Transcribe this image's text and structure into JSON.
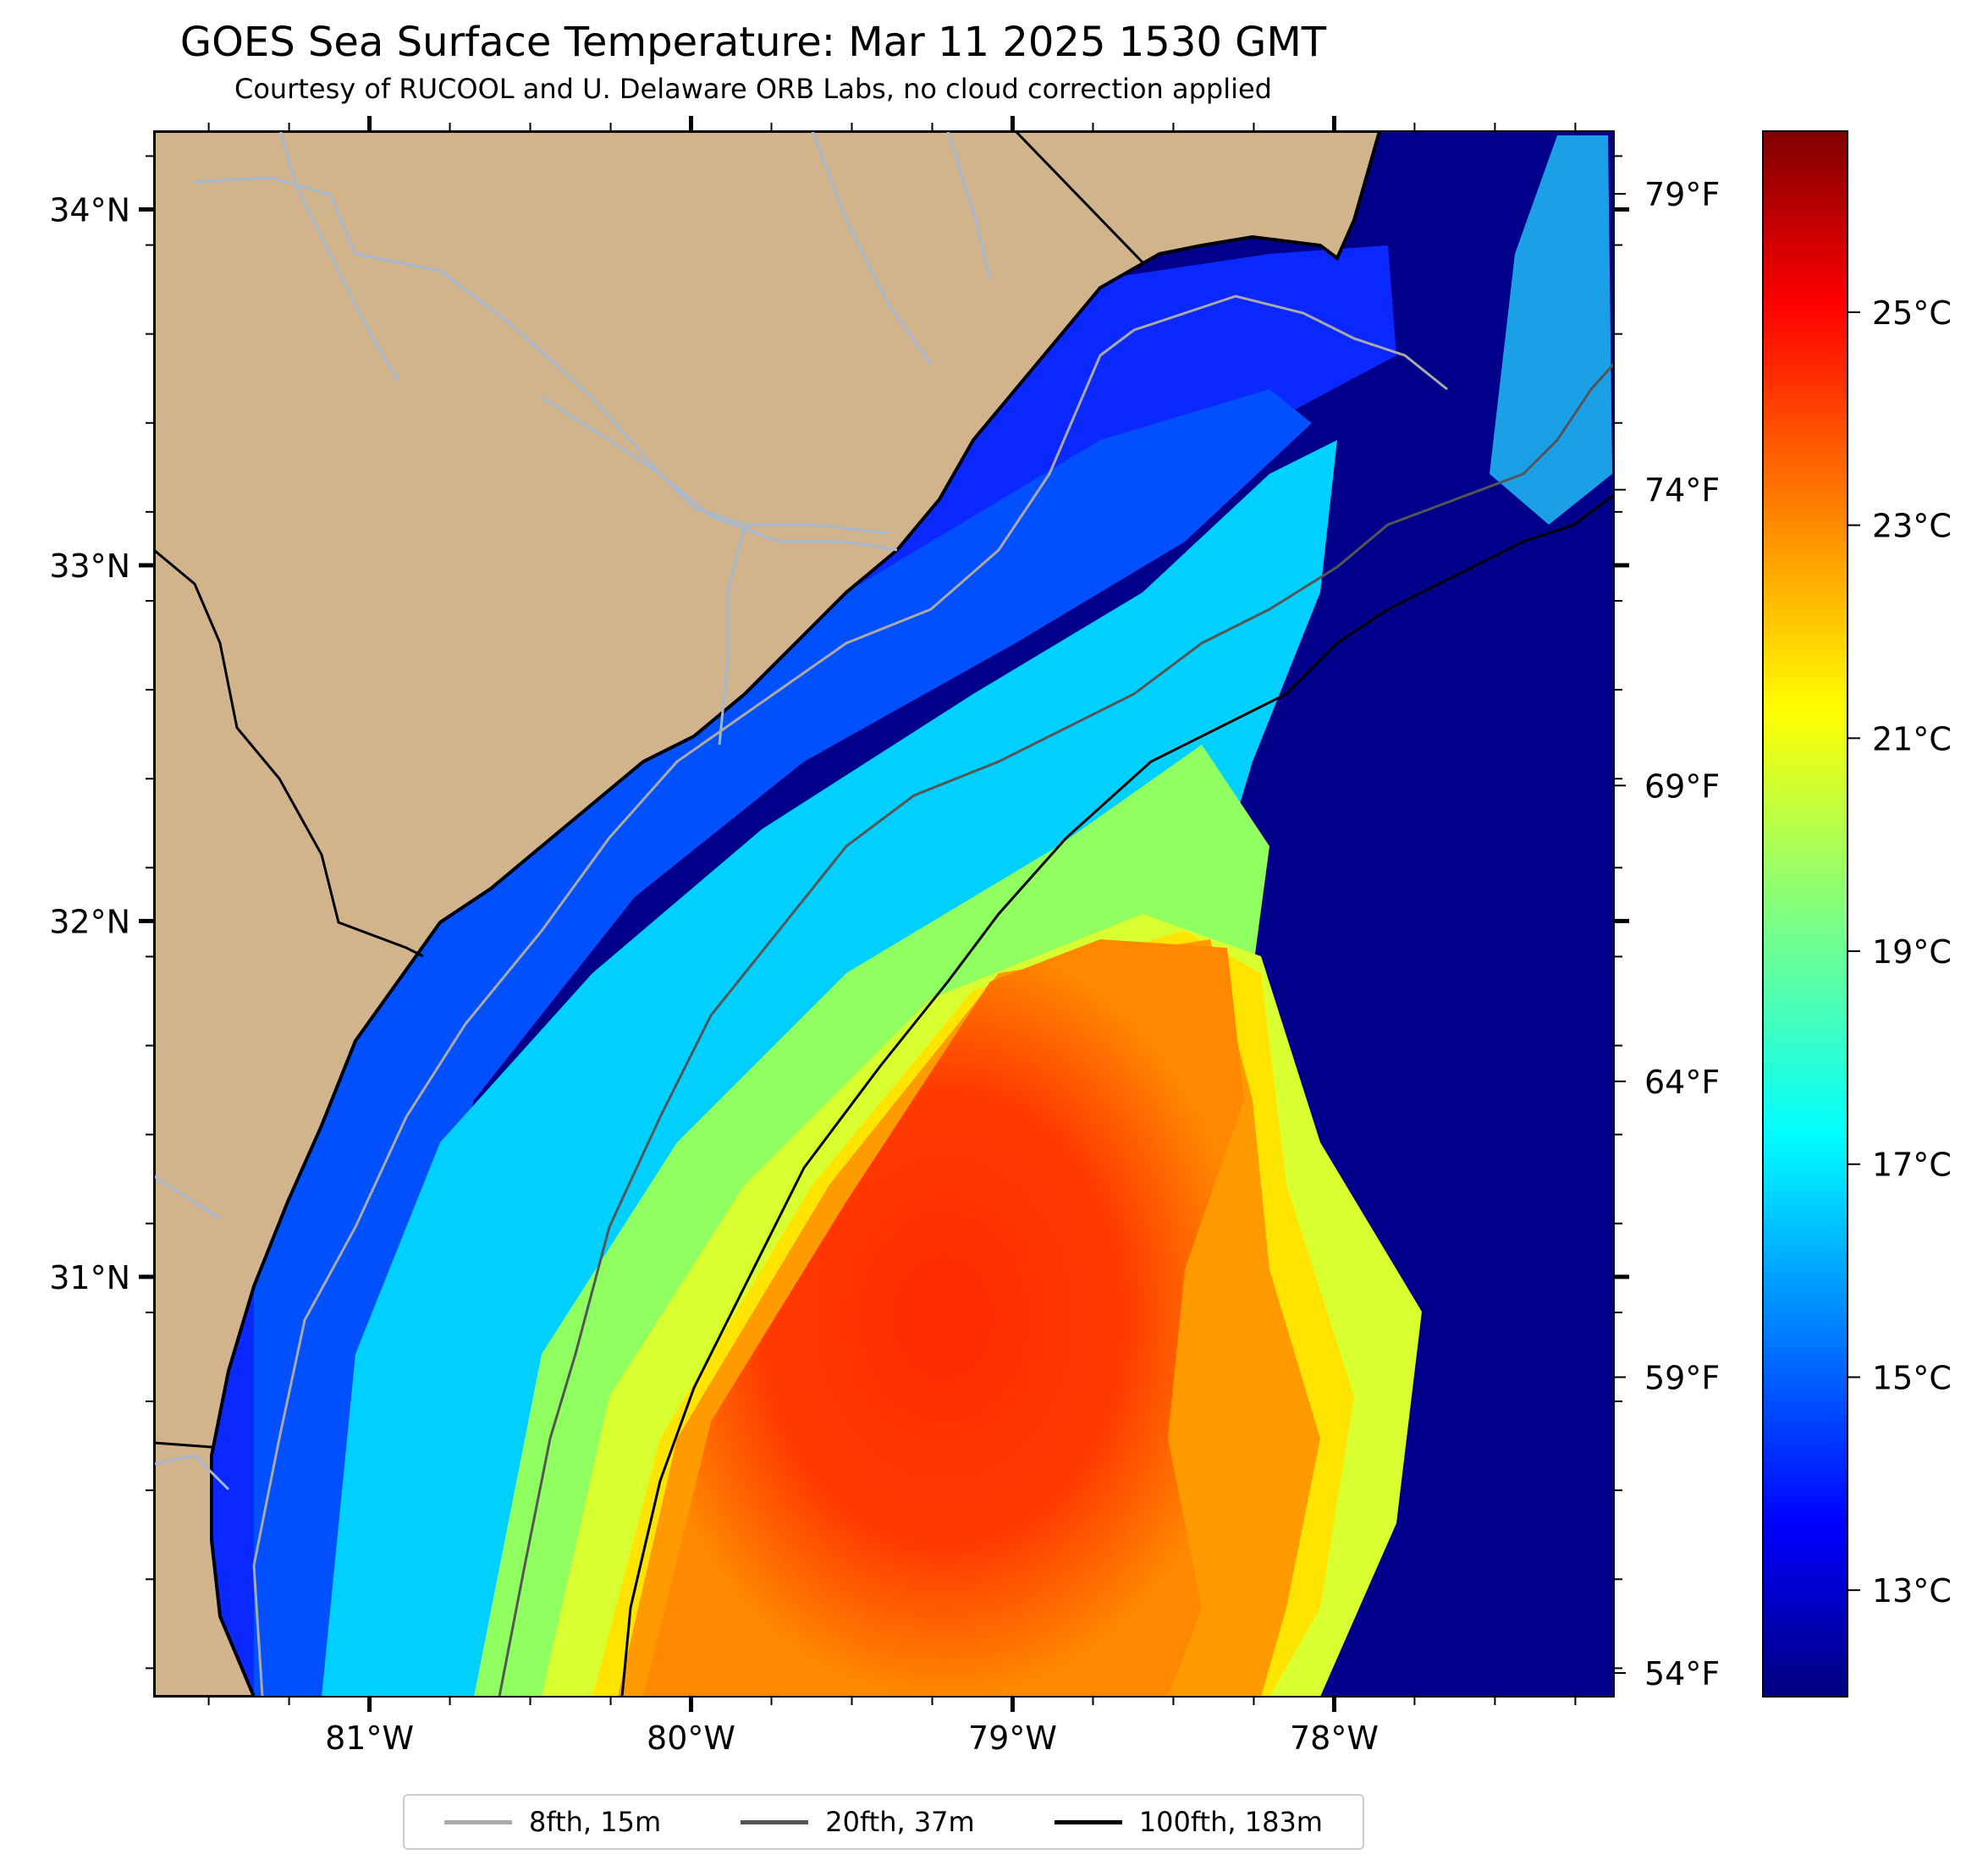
{
  "header": {
    "title": "GOES Sea Surface Temperature: Mar 11 2025 1530 GMT",
    "subtitle": "Courtesy of RUCOOL and U. Delaware ORB Labs, no cloud correction applied"
  },
  "map": {
    "lon_range": [
      -81.67,
      -77.13
    ],
    "lat_range": [
      29.82,
      34.22
    ],
    "lat_ticks": [
      {
        "value": 34,
        "label": "34°N"
      },
      {
        "value": 33,
        "label": "33°N"
      },
      {
        "value": 32,
        "label": "32°N"
      },
      {
        "value": 31,
        "label": "31°N"
      }
    ],
    "lon_ticks": [
      {
        "value": -81,
        "label": "81°W"
      },
      {
        "value": -80,
        "label": "80°W"
      },
      {
        "value": -79,
        "label": "79°W"
      },
      {
        "value": -78,
        "label": "78°W"
      }
    ],
    "fahrenheit_ticks": [
      {
        "value": 79,
        "label": "79°F"
      },
      {
        "value": 74,
        "label": "74°F"
      },
      {
        "value": 69,
        "label": "69°F"
      },
      {
        "value": 64,
        "label": "64°F"
      },
      {
        "value": 59,
        "label": "59°F"
      },
      {
        "value": 54,
        "label": "54°F"
      }
    ],
    "colors": {
      "land": "#d2b48c",
      "river": "#a5b8d0",
      "coast": "#000000"
    }
  },
  "colorbar": {
    "range_c": [
      12,
      26.7
    ],
    "ticks": [
      {
        "value": 25,
        "label": "25°C"
      },
      {
        "value": 23,
        "label": "23°C"
      },
      {
        "value": 21,
        "label": "21°C"
      },
      {
        "value": 19,
        "label": "19°C"
      },
      {
        "value": 17,
        "label": "17°C"
      },
      {
        "value": 15,
        "label": "15°C"
      },
      {
        "value": 13,
        "label": "13°C"
      }
    ],
    "colormap": "jet"
  },
  "legend": {
    "items": [
      {
        "label": "8fth, 15m",
        "color": "#aaaaaa"
      },
      {
        "label": "20fth, 37m",
        "color": "#555555"
      },
      {
        "label": "100fth, 183m",
        "color": "#000000"
      }
    ]
  }
}
